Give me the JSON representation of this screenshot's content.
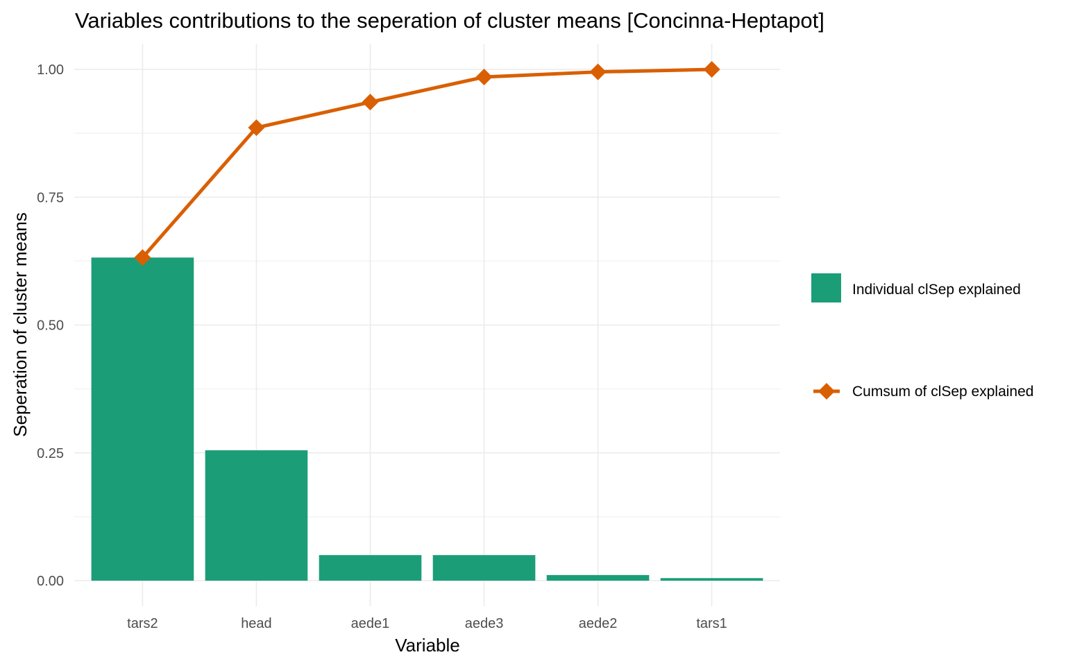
{
  "chart_data": {
    "type": "bar",
    "title": "Variables contributions to the seperation of cluster means [Concinna-Heptapot]",
    "xlabel": "Variable",
    "ylabel": "Seperation of cluster means",
    "categories": [
      "tars2",
      "head",
      "aede1",
      "aede3",
      "aede2",
      "tars1"
    ],
    "ylim": [
      -0.05,
      1.05
    ],
    "yticks": [
      0.0,
      0.25,
      0.5,
      0.75,
      1.0
    ],
    "ytick_labels": [
      "0.00",
      "0.25",
      "0.50",
      "0.75",
      "1.00"
    ],
    "grid": true,
    "legend_position": "right",
    "series": [
      {
        "name": "Individual clSep explained",
        "type": "bar",
        "color": "#1b9e77",
        "values": [
          0.632,
          0.255,
          0.05,
          0.05,
          0.011,
          0.005
        ]
      },
      {
        "name": "Cumsum of clSep explained",
        "type": "line",
        "marker": "diamond",
        "color": "#d95f02",
        "values": [
          0.632,
          0.886,
          0.936,
          0.985,
          0.995,
          1.0
        ]
      }
    ]
  }
}
